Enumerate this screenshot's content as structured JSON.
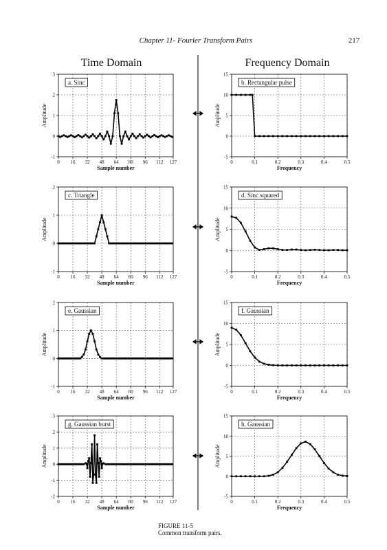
{
  "header": {
    "chapter": "Chapter 11- Fourier Transform Pairs",
    "page_number": "217"
  },
  "columns": [
    "Time Domain",
    "Frequency Domain"
  ],
  "caption": {
    "figure": "FIGURE 11-5",
    "text": "Common transform pairs."
  },
  "chart_data": [
    {
      "type": "line",
      "title": "a. Sinc",
      "xlabel": "Sample number",
      "ylabel": "Amplitude",
      "color": "#000000",
      "grid": true,
      "xlim": [
        0,
        127
      ],
      "ylim": [
        -1,
        3
      ],
      "xticks": [
        0,
        16,
        32,
        48,
        64,
        80,
        96,
        112,
        127
      ],
      "yticks": [
        -1,
        0,
        1,
        2,
        3
      ],
      "x": [
        0,
        2,
        4,
        6,
        8,
        10,
        12,
        14,
        16,
        18,
        20,
        22,
        24,
        26,
        28,
        30,
        32,
        34,
        36,
        38,
        40,
        42,
        44,
        46,
        48,
        50,
        52,
        54,
        56,
        58,
        60,
        62,
        64,
        66,
        68,
        70,
        72,
        74,
        76,
        78,
        80,
        82,
        84,
        86,
        88,
        90,
        92,
        94,
        96,
        98,
        100,
        102,
        104,
        106,
        108,
        110,
        112,
        114,
        116,
        118,
        120,
        122,
        124,
        126
      ],
      "values": [
        0,
        -0.04,
        0,
        0.04,
        0,
        -0.04,
        0,
        0.04,
        0,
        -0.05,
        0,
        0.05,
        0,
        -0.06,
        0,
        0.07,
        0,
        -0.07,
        0,
        0.09,
        0,
        -0.1,
        0,
        0.12,
        0,
        -0.16,
        0,
        0.22,
        0,
        -0.37,
        0,
        1.11,
        1.75,
        1.11,
        0,
        -0.37,
        0,
        0.22,
        0,
        -0.16,
        0,
        0.12,
        0,
        -0.1,
        0,
        0.09,
        0,
        -0.07,
        0,
        0.07,
        0,
        -0.06,
        0,
        0.05,
        0,
        -0.05,
        0,
        0.04,
        0,
        -0.04,
        0,
        0.04,
        0,
        -0.04
      ]
    },
    {
      "type": "line",
      "title": "b. Rectangular pulse",
      "xlabel": "Frequency",
      "ylabel": "Amplitude",
      "color": "#000000",
      "grid": true,
      "xlim": [
        0,
        0.5
      ],
      "ylim": [
        -5,
        15
      ],
      "xticks": [
        0,
        0.1,
        0.2,
        0.3,
        0.4,
        0.5
      ],
      "yticks": [
        -5,
        0,
        5,
        10,
        15
      ],
      "x": [
        0,
        0.02,
        0.04,
        0.06,
        0.08,
        0.09,
        0.1,
        0.12,
        0.14,
        0.16,
        0.18,
        0.2,
        0.22,
        0.24,
        0.26,
        0.28,
        0.3,
        0.32,
        0.34,
        0.36,
        0.38,
        0.4,
        0.42,
        0.44,
        0.46,
        0.48,
        0.5
      ],
      "values": [
        10,
        10,
        10,
        10,
        10,
        10,
        0,
        0,
        0,
        0,
        0,
        0,
        0,
        0,
        0,
        0,
        0,
        0,
        0,
        0,
        0,
        0,
        0,
        0,
        0,
        0,
        0
      ]
    },
    {
      "type": "line",
      "title": "c. Triangle",
      "xlabel": "Sample number",
      "ylabel": "Amplitude",
      "color": "#000000",
      "grid": true,
      "xlim": [
        0,
        127
      ],
      "ylim": [
        -1,
        2
      ],
      "xticks": [
        0,
        16,
        32,
        48,
        64,
        80,
        96,
        112,
        127
      ],
      "yticks": [
        -1,
        0,
        1,
        2
      ],
      "x": [
        0,
        2,
        4,
        6,
        8,
        10,
        12,
        14,
        16,
        18,
        20,
        22,
        24,
        26,
        28,
        30,
        32,
        34,
        36,
        38,
        40,
        42,
        44,
        46,
        48,
        50,
        52,
        54,
        56,
        58,
        60,
        62,
        64,
        66,
        68,
        70,
        72,
        74,
        76,
        78,
        80,
        82,
        84,
        86,
        88,
        90,
        92,
        94,
        96,
        98,
        100,
        102,
        104,
        106,
        108,
        110,
        112,
        114,
        116,
        118,
        120,
        122,
        124,
        126
      ],
      "values": [
        0,
        0,
        0,
        0,
        0,
        0,
        0,
        0,
        0,
        0,
        0,
        0,
        0,
        0,
        0,
        0,
        0,
        0,
        0,
        0,
        0,
        0.25,
        0.5,
        0.75,
        1,
        0.75,
        0.5,
        0.25,
        0,
        0,
        0,
        0,
        0,
        0,
        0,
        0,
        0,
        0,
        0,
        0,
        0,
        0,
        0,
        0,
        0,
        0,
        0,
        0,
        0,
        0,
        0,
        0,
        0,
        0,
        0,
        0,
        0,
        0,
        0,
        0,
        0,
        0,
        0,
        0
      ]
    },
    {
      "type": "line",
      "title": "d. Sinc squared",
      "xlabel": "Frequency",
      "ylabel": "Amplitude",
      "color": "#000000",
      "grid": true,
      "xlim": [
        0,
        0.5
      ],
      "ylim": [
        -5,
        15
      ],
      "xticks": [
        0,
        0.1,
        0.2,
        0.3,
        0.4,
        0.5
      ],
      "yticks": [
        -5,
        0,
        5,
        10,
        15
      ],
      "x": [
        0,
        0.02,
        0.04,
        0.06,
        0.08,
        0.1,
        0.12,
        0.14,
        0.16,
        0.18,
        0.2,
        0.22,
        0.24,
        0.26,
        0.28,
        0.3,
        0.32,
        0.34,
        0.36,
        0.38,
        0.4,
        0.42,
        0.44,
        0.46,
        0.48,
        0.5
      ],
      "values": [
        8,
        7.7,
        6.5,
        4.5,
        2.3,
        0.7,
        0.1,
        0.3,
        0.5,
        0.5,
        0.3,
        0.1,
        0.1,
        0.2,
        0.2,
        0.1,
        0.05,
        0.1,
        0.15,
        0.1,
        0.05,
        0.05,
        0.1,
        0.1,
        0.05,
        0.05
      ]
    },
    {
      "type": "line",
      "title": "e. Gaussian",
      "xlabel": "Sample number",
      "ylabel": "Amplitude",
      "color": "#000000",
      "grid": true,
      "xlim": [
        0,
        127
      ],
      "ylim": [
        -1,
        2
      ],
      "xticks": [
        0,
        16,
        32,
        48,
        64,
        80,
        96,
        112,
        127
      ],
      "yticks": [
        -1,
        0,
        1,
        2
      ],
      "x": [
        0,
        2,
        4,
        6,
        8,
        10,
        12,
        14,
        16,
        18,
        20,
        22,
        24,
        26,
        28,
        30,
        32,
        34,
        36,
        38,
        40,
        42,
        44,
        46,
        48,
        50,
        52,
        54,
        56,
        58,
        60,
        62,
        64,
        66,
        68,
        70,
        72,
        74,
        76,
        78,
        80,
        82,
        84,
        86,
        88,
        90,
        92,
        94,
        96,
        98,
        100,
        102,
        104,
        106,
        108,
        110,
        112,
        114,
        116,
        118,
        120,
        122,
        124,
        126
      ],
      "values": [
        0,
        0,
        0,
        0,
        0,
        0,
        0,
        0,
        0,
        0,
        0,
        0,
        0,
        0.05,
        0.14,
        0.32,
        0.61,
        0.88,
        1,
        0.88,
        0.61,
        0.32,
        0.14,
        0.05,
        0,
        0,
        0,
        0,
        0,
        0,
        0,
        0,
        0,
        0,
        0,
        0,
        0,
        0,
        0,
        0,
        0,
        0,
        0,
        0,
        0,
        0,
        0,
        0,
        0,
        0,
        0,
        0,
        0,
        0,
        0,
        0,
        0,
        0,
        0,
        0,
        0,
        0,
        0,
        0
      ]
    },
    {
      "type": "line",
      "title": "f. Gaussian",
      "xlabel": "Frequency",
      "ylabel": "Amplitude",
      "color": "#000000",
      "grid": true,
      "xlim": [
        0,
        0.5
      ],
      "ylim": [
        -5,
        15
      ],
      "xticks": [
        0,
        0.1,
        0.2,
        0.3,
        0.4,
        0.5
      ],
      "yticks": [
        -5,
        0,
        5,
        10,
        15
      ],
      "x": [
        0,
        0.02,
        0.04,
        0.06,
        0.08,
        0.1,
        0.12,
        0.14,
        0.16,
        0.18,
        0.2,
        0.22,
        0.24,
        0.26,
        0.28,
        0.3,
        0.32,
        0.34,
        0.36,
        0.38,
        0.4,
        0.42,
        0.44,
        0.46,
        0.48,
        0.5
      ],
      "values": [
        9,
        8.5,
        7.2,
        5.3,
        3.4,
        1.9,
        0.9,
        0.4,
        0.15,
        0.05,
        0,
        0,
        0,
        0,
        0,
        0,
        0,
        0,
        0,
        0,
        0,
        0,
        0,
        0,
        0,
        0
      ]
    },
    {
      "type": "line",
      "title": "g. Gaussian burst",
      "xlabel": "Sample number",
      "ylabel": "Amplitude",
      "color": "#000000",
      "grid": true,
      "xlim": [
        0,
        127
      ],
      "ylim": [
        -2,
        3
      ],
      "xticks": [
        0,
        16,
        32,
        48,
        64,
        80,
        96,
        112,
        127
      ],
      "yticks": [
        -2,
        -1,
        0,
        1,
        2,
        3
      ],
      "x": [
        0,
        2,
        4,
        6,
        8,
        10,
        12,
        14,
        16,
        18,
        20,
        22,
        24,
        26,
        28,
        30,
        31,
        32,
        33,
        34,
        35,
        36,
        37,
        38,
        39,
        40,
        41,
        42,
        43,
        44,
        45,
        46,
        47,
        48,
        49,
        50,
        52,
        54,
        56,
        58,
        60,
        62,
        64,
        66,
        68,
        70,
        72,
        74,
        76,
        78,
        80,
        82,
        84,
        86,
        88,
        90,
        92,
        94,
        96,
        98,
        100,
        102,
        104,
        106,
        108,
        110,
        112,
        114,
        116,
        118,
        120,
        122,
        124,
        126
      ],
      "values": [
        0,
        0,
        0,
        0,
        0,
        0,
        0,
        0,
        0,
        0,
        0,
        0,
        0,
        0,
        0,
        0.06,
        0.04,
        -0.24,
        0.19,
        0.37,
        -0.78,
        0.07,
        1.24,
        -1.16,
        -0.64,
        1.8,
        -0.64,
        -1.16,
        1.24,
        0.07,
        -0.78,
        0.37,
        0.19,
        -0.24,
        0.04,
        0.06,
        0,
        0,
        0,
        0,
        0,
        0,
        0,
        0,
        0,
        0,
        0,
        0,
        0,
        0,
        0,
        0,
        0,
        0,
        0,
        0,
        0,
        0,
        0,
        0,
        0,
        0,
        0,
        0,
        0,
        0,
        0,
        0,
        0,
        0,
        0,
        0,
        0,
        0
      ]
    },
    {
      "type": "line",
      "title": "h. Gaussian",
      "xlabel": "Frequency",
      "ylabel": "Amplitude",
      "color": "#000000",
      "grid": true,
      "xlim": [
        0,
        0.5
      ],
      "ylim": [
        -5,
        15
      ],
      "xticks": [
        0,
        0.1,
        0.2,
        0.3,
        0.4,
        0.5
      ],
      "yticks": [
        -5,
        0,
        5,
        10,
        15
      ],
      "x": [
        0,
        0.02,
        0.04,
        0.06,
        0.08,
        0.1,
        0.12,
        0.14,
        0.16,
        0.18,
        0.2,
        0.22,
        0.24,
        0.26,
        0.28,
        0.3,
        0.32,
        0.34,
        0.36,
        0.38,
        0.4,
        0.42,
        0.44,
        0.46,
        0.48,
        0.5
      ],
      "values": [
        0,
        0,
        0,
        0,
        0,
        0,
        0,
        0,
        0.1,
        0.4,
        1.0,
        2.1,
        3.6,
        5.3,
        7.0,
        8.2,
        8.6,
        8.0,
        6.7,
        5.0,
        3.3,
        1.9,
        1.0,
        0.4,
        0.15,
        0.05
      ]
    }
  ]
}
